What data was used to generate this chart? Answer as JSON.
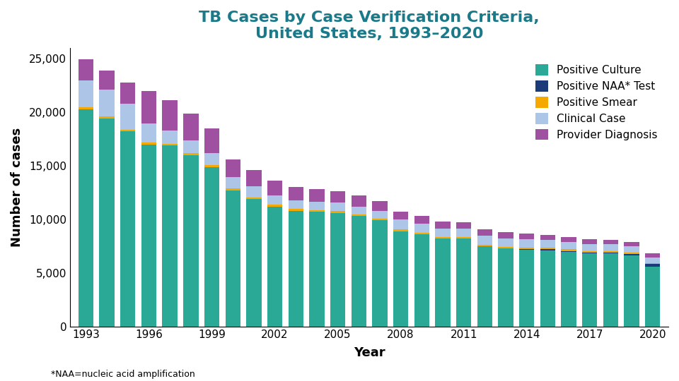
{
  "years": [
    1993,
    1994,
    1995,
    1996,
    1997,
    1998,
    1999,
    2000,
    2001,
    2002,
    2003,
    2004,
    2005,
    2006,
    2007,
    2008,
    2009,
    2010,
    2011,
    2012,
    2013,
    2014,
    2015,
    2016,
    2017,
    2018,
    2019,
    2020
  ],
  "positive_culture": [
    20300,
    19400,
    18200,
    17000,
    16900,
    16000,
    14900,
    12700,
    11900,
    11200,
    10800,
    10700,
    10600,
    10300,
    9900,
    8900,
    8600,
    8200,
    8200,
    7500,
    7300,
    7150,
    7100,
    6950,
    6800,
    6800,
    6650,
    5600
  ],
  "positive_naa": [
    0,
    0,
    0,
    0,
    0,
    0,
    0,
    0,
    0,
    0,
    0,
    0,
    0,
    0,
    0,
    0,
    0,
    0,
    0,
    0,
    0,
    80,
    100,
    100,
    100,
    100,
    110,
    230
  ],
  "positive_smear": [
    200,
    200,
    170,
    180,
    170,
    160,
    160,
    160,
    160,
    150,
    150,
    150,
    150,
    150,
    150,
    200,
    150,
    150,
    150,
    150,
    150,
    150,
    150,
    150,
    150,
    150,
    150,
    100
  ],
  "clinical_case": [
    2500,
    2500,
    2400,
    1800,
    1200,
    1200,
    1100,
    1100,
    1000,
    900,
    850,
    820,
    800,
    750,
    700,
    900,
    850,
    800,
    800,
    800,
    780,
    750,
    700,
    680,
    660,
    630,
    590,
    530
  ],
  "provider_diagnosis": [
    1950,
    1800,
    2000,
    3000,
    2830,
    2540,
    2340,
    1640,
    1540,
    1350,
    1200,
    1130,
    1050,
    1000,
    950,
    700,
    700,
    650,
    600,
    650,
    570,
    520,
    500,
    480,
    460,
    420,
    400,
    350
  ],
  "colors": {
    "positive_culture": "#2aaa96",
    "positive_naa": "#1a3a7a",
    "positive_smear": "#f5a800",
    "clinical_case": "#adc6e8",
    "provider_diagnosis": "#a050a0"
  },
  "title_line1": "TB Cases by Case Verification Criteria,",
  "title_line2": "United States, 1993–2020",
  "xlabel": "Year",
  "ylabel": "Number of cases",
  "footnote": "*NAA=nucleic acid amplification",
  "legend_labels": [
    "Positive Culture",
    "Positive NAA* Test",
    "Positive Smear",
    "Clinical Case",
    "Provider Diagnosis"
  ],
  "ylim": [
    0,
    26000
  ],
  "yticks": [
    0,
    5000,
    10000,
    15000,
    20000,
    25000
  ],
  "ytick_labels": [
    "0",
    "5,000",
    "10,000",
    "15,000",
    "20,000",
    "25,000"
  ],
  "title_color": "#1a7a8a",
  "title_fontsize": 16,
  "axis_label_fontsize": 13,
  "tick_fontsize": 11,
  "legend_fontsize": 11
}
